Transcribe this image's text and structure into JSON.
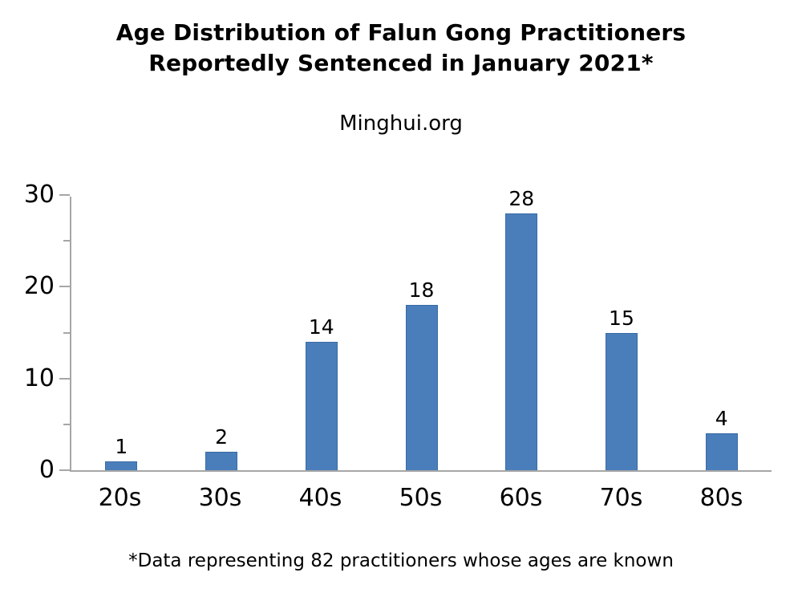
{
  "page": {
    "background_color": "#ffffff",
    "text_color": "#000000"
  },
  "chart_data": {
    "type": "bar",
    "title": "Age Distribution of Falun Gong Practitioners Reportedly Sentenced in January 2021*",
    "title_lines": [
      "Age Distribution of Falun Gong Practitioners",
      "Reportedly Sentenced in January 2021*"
    ],
    "subtitle": "Minghui.org",
    "categories": [
      "20s",
      "30s",
      "40s",
      "50s",
      "60s",
      "70s",
      "80s"
    ],
    "values": [
      1,
      2,
      14,
      18,
      28,
      15,
      4
    ],
    "xlabel": "",
    "ylabel": "",
    "ylim": [
      0,
      30
    ],
    "yticks_major": [
      0,
      10,
      20,
      30
    ],
    "yticks_minor": [
      5,
      15,
      25
    ],
    "grid": false,
    "legend": "none",
    "data_labels": true,
    "bar_color": "#4A7EBB",
    "bar_border_color": "#3A6BA5",
    "axis_color": "#A6A6A6",
    "footnote": "*Data representing 82 practitioners whose ages are known"
  }
}
